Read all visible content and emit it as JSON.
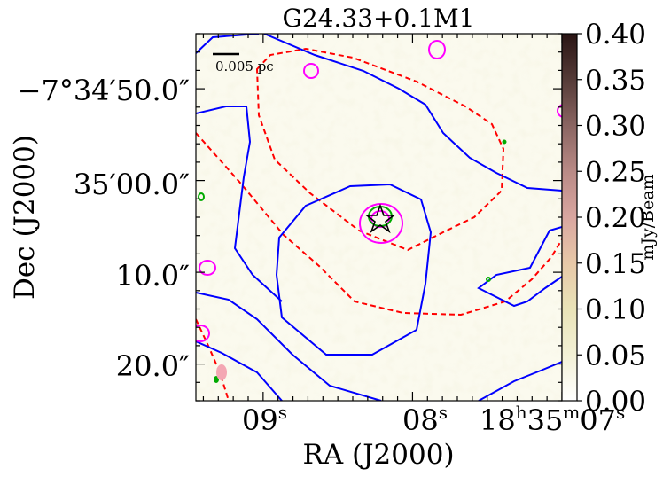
{
  "chart_data": {
    "type": "heatmap",
    "title": "G24.33+0.1M1",
    "xlabel": "RA (J2000)",
    "ylabel": "Dec (J2000)",
    "x_ticks": [
      {
        "ra_sec": 9.0,
        "label": "09",
        "sup": "s"
      },
      {
        "ra_sec": 8.0,
        "label": "08",
        "sup": "s"
      },
      {
        "ra_sec": 7.0,
        "label": "18",
        "sup_h": "h",
        "mid": "35",
        "sup_m": "m",
        "tail": "07",
        "sup": "s"
      }
    ],
    "y_ticks": [
      {
        "dec_offset_arcsec": 50.0,
        "label": "−7°34′50.0″"
      },
      {
        "dec_offset_arcsec": 60.0,
        "label": "35′00.0″"
      },
      {
        "dec_offset_arcsec": 70.0,
        "label": "10.0″"
      },
      {
        "dec_offset_arcsec": 80.0,
        "label": "20.0″"
      }
    ],
    "x_range_ra_sec": [
      9.45,
      7.0
    ],
    "y_range_dec_offset_arcsec": [
      44.0,
      84.0
    ],
    "colorbar": {
      "label": "mJy/Beam",
      "range": [
        0.0,
        0.4
      ],
      "ticks": [
        "0.00",
        "0.05",
        "0.10",
        "0.15",
        "0.20",
        "0.25",
        "0.30",
        "0.35",
        "0.40"
      ],
      "colors": [
        "#ffffff",
        "#f3f1d6",
        "#e9e3b8",
        "#e7c8a8",
        "#d9a6a0",
        "#b98a86",
        "#8a6562",
        "#553b38",
        "#2a1514"
      ]
    },
    "scalebar": {
      "label": "0.005 pc"
    },
    "contour_colors": {
      "blue": "#0000ff",
      "red": "#ff0000",
      "magenta": "#ff00ff",
      "green": "#00aa00"
    },
    "source_marker": {
      "type": "star",
      "ra_sec": 8.0,
      "dec_offset_arcsec": 61.5
    },
    "beam": {
      "color": "#f4a7b3",
      "ra_sec": 9.26,
      "dec_offset_arcsec": 81.0
    }
  }
}
